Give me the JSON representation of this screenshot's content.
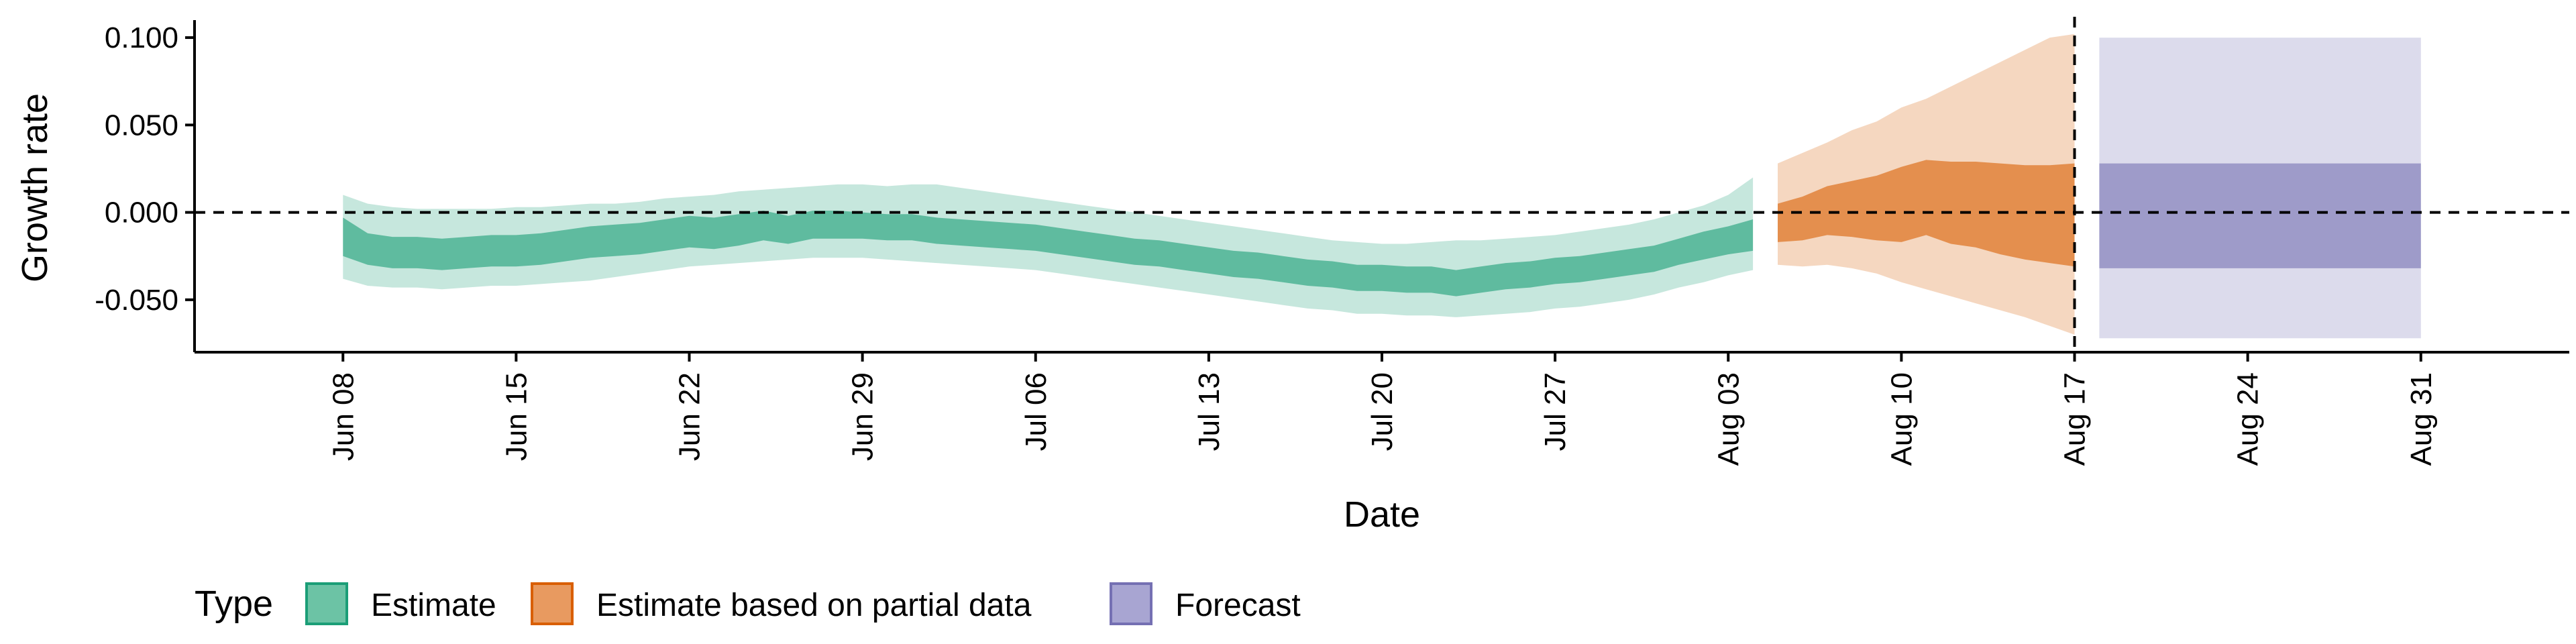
{
  "chart_data": {
    "type": "area",
    "title": "",
    "xlabel": "Date",
    "ylabel": "Growth rate",
    "x_range": [
      "2020-06-02",
      "2020-09-06"
    ],
    "ylim": [
      -0.08,
      0.11
    ],
    "grid": false,
    "reference_lines": [
      {
        "orientation": "horizontal",
        "y": 0.0,
        "style": "dashed"
      },
      {
        "orientation": "vertical",
        "x": "2020-08-17",
        "style": "dashed"
      }
    ],
    "x_ticks": [
      {
        "date": "2020-06-08",
        "label": "Jun 08"
      },
      {
        "date": "2020-06-15",
        "label": "Jun 15"
      },
      {
        "date": "2020-06-22",
        "label": "Jun 22"
      },
      {
        "date": "2020-06-29",
        "label": "Jun 29"
      },
      {
        "date": "2020-07-06",
        "label": "Jul 06"
      },
      {
        "date": "2020-07-13",
        "label": "Jul 13"
      },
      {
        "date": "2020-07-20",
        "label": "Jul 20"
      },
      {
        "date": "2020-07-27",
        "label": "Jul 27"
      },
      {
        "date": "2020-08-03",
        "label": "Aug 03"
      },
      {
        "date": "2020-08-10",
        "label": "Aug 10"
      },
      {
        "date": "2020-08-17",
        "label": "Aug 17"
      },
      {
        "date": "2020-08-24",
        "label": "Aug 24"
      },
      {
        "date": "2020-08-31",
        "label": "Aug 31"
      }
    ],
    "y_ticks": [
      {
        "value": 0.1,
        "label": "0.100"
      },
      {
        "value": 0.05,
        "label": "0.050"
      },
      {
        "value": 0.0,
        "label": "0.000"
      },
      {
        "value": -0.05,
        "label": "-0.050"
      }
    ],
    "legend": {
      "title": "Type",
      "position": "bottom-left",
      "entries": [
        {
          "label": "Estimate",
          "color": "#1b9e77",
          "fill": "#6cc3a5"
        },
        {
          "label": "Estimate based on partial data",
          "color": "#d95f02",
          "fill": "#e89a60"
        },
        {
          "label": "Forecast",
          "color": "#7570b3",
          "fill": "#a8a5d2"
        }
      ]
    },
    "series": [
      {
        "name": "Estimate",
        "color": "#1b9e77",
        "inner_opacity": 0.6,
        "outer_opacity": 0.25,
        "x": [
          "2020-06-08",
          "2020-06-09",
          "2020-06-10",
          "2020-06-11",
          "2020-06-12",
          "2020-06-13",
          "2020-06-14",
          "2020-06-15",
          "2020-06-16",
          "2020-06-17",
          "2020-06-18",
          "2020-06-19",
          "2020-06-20",
          "2020-06-21",
          "2020-06-22",
          "2020-06-23",
          "2020-06-24",
          "2020-06-25",
          "2020-06-26",
          "2020-06-27",
          "2020-06-28",
          "2020-06-29",
          "2020-06-30",
          "2020-07-01",
          "2020-07-02",
          "2020-07-03",
          "2020-07-04",
          "2020-07-05",
          "2020-07-06",
          "2020-07-07",
          "2020-07-08",
          "2020-07-09",
          "2020-07-10",
          "2020-07-11",
          "2020-07-12",
          "2020-07-13",
          "2020-07-14",
          "2020-07-15",
          "2020-07-16",
          "2020-07-17",
          "2020-07-18",
          "2020-07-19",
          "2020-07-20",
          "2020-07-21",
          "2020-07-22",
          "2020-07-23",
          "2020-07-24",
          "2020-07-25",
          "2020-07-26",
          "2020-07-27",
          "2020-07-28",
          "2020-07-29",
          "2020-07-30",
          "2020-07-31",
          "2020-08-01",
          "2020-08-02",
          "2020-08-03",
          "2020-08-04"
        ],
        "inner_lower": [
          -0.025,
          -0.03,
          -0.032,
          -0.032,
          -0.033,
          -0.032,
          -0.031,
          -0.031,
          -0.03,
          -0.028,
          -0.026,
          -0.025,
          -0.024,
          -0.022,
          -0.02,
          -0.021,
          -0.019,
          -0.016,
          -0.018,
          -0.015,
          -0.015,
          -0.015,
          -0.016,
          -0.016,
          -0.018,
          -0.019,
          -0.02,
          -0.021,
          -0.022,
          -0.024,
          -0.026,
          -0.028,
          -0.03,
          -0.031,
          -0.033,
          -0.035,
          -0.037,
          -0.038,
          -0.04,
          -0.042,
          -0.043,
          -0.045,
          -0.045,
          -0.046,
          -0.046,
          -0.048,
          -0.046,
          -0.044,
          -0.043,
          -0.041,
          -0.04,
          -0.038,
          -0.036,
          -0.034,
          -0.03,
          -0.027,
          -0.024,
          -0.022
        ],
        "inner_upper": [
          -0.003,
          -0.012,
          -0.014,
          -0.014,
          -0.015,
          -0.014,
          -0.013,
          -0.013,
          -0.012,
          -0.01,
          -0.008,
          -0.007,
          -0.006,
          -0.004,
          -0.002,
          -0.003,
          -0.001,
          0.001,
          -0.002,
          0.001,
          0.001,
          0.0,
          -0.001,
          -0.001,
          -0.003,
          -0.004,
          -0.005,
          -0.006,
          -0.007,
          -0.009,
          -0.011,
          -0.013,
          -0.015,
          -0.016,
          -0.018,
          -0.02,
          -0.022,
          -0.023,
          -0.025,
          -0.027,
          -0.028,
          -0.03,
          -0.03,
          -0.031,
          -0.031,
          -0.033,
          -0.031,
          -0.029,
          -0.028,
          -0.026,
          -0.025,
          -0.023,
          -0.021,
          -0.019,
          -0.015,
          -0.011,
          -0.008,
          -0.004
        ],
        "outer_lower": [
          -0.038,
          -0.042,
          -0.043,
          -0.043,
          -0.044,
          -0.043,
          -0.042,
          -0.042,
          -0.041,
          -0.04,
          -0.039,
          -0.037,
          -0.035,
          -0.033,
          -0.031,
          -0.03,
          -0.029,
          -0.028,
          -0.027,
          -0.026,
          -0.026,
          -0.026,
          -0.027,
          -0.028,
          -0.029,
          -0.03,
          -0.031,
          -0.032,
          -0.033,
          -0.035,
          -0.037,
          -0.039,
          -0.041,
          -0.043,
          -0.045,
          -0.047,
          -0.049,
          -0.051,
          -0.053,
          -0.055,
          -0.056,
          -0.058,
          -0.058,
          -0.059,
          -0.059,
          -0.06,
          -0.059,
          -0.058,
          -0.057,
          -0.055,
          -0.054,
          -0.052,
          -0.05,
          -0.047,
          -0.043,
          -0.04,
          -0.036,
          -0.033
        ],
        "outer_upper": [
          0.01,
          0.005,
          0.003,
          0.002,
          0.002,
          0.002,
          0.002,
          0.003,
          0.003,
          0.004,
          0.005,
          0.005,
          0.006,
          0.008,
          0.009,
          0.01,
          0.012,
          0.013,
          0.014,
          0.015,
          0.016,
          0.016,
          0.015,
          0.016,
          0.016,
          0.014,
          0.012,
          0.01,
          0.008,
          0.006,
          0.004,
          0.002,
          0.0,
          -0.002,
          -0.004,
          -0.006,
          -0.008,
          -0.01,
          -0.012,
          -0.014,
          -0.016,
          -0.017,
          -0.018,
          -0.018,
          -0.017,
          -0.016,
          -0.016,
          -0.015,
          -0.014,
          -0.013,
          -0.011,
          -0.009,
          -0.007,
          -0.004,
          0.0,
          0.004,
          0.01,
          0.02
        ]
      },
      {
        "name": "Estimate based on partial data",
        "color": "#d95f02",
        "inner_opacity": 0.6,
        "outer_opacity": 0.25,
        "x": [
          "2020-08-05",
          "2020-08-06",
          "2020-08-07",
          "2020-08-08",
          "2020-08-09",
          "2020-08-10",
          "2020-08-11",
          "2020-08-12",
          "2020-08-13",
          "2020-08-14",
          "2020-08-15",
          "2020-08-16",
          "2020-08-17"
        ],
        "inner_lower": [
          -0.017,
          -0.016,
          -0.013,
          -0.014,
          -0.016,
          -0.017,
          -0.013,
          -0.018,
          -0.02,
          -0.024,
          -0.027,
          -0.029,
          -0.031
        ],
        "inner_upper": [
          0.005,
          0.009,
          0.015,
          0.018,
          0.021,
          0.026,
          0.03,
          0.029,
          0.029,
          0.028,
          0.027,
          0.027,
          0.028
        ],
        "outer_lower": [
          -0.03,
          -0.031,
          -0.03,
          -0.032,
          -0.035,
          -0.04,
          -0.044,
          -0.048,
          -0.052,
          -0.056,
          -0.06,
          -0.065,
          -0.07
        ],
        "outer_upper": [
          0.028,
          0.034,
          0.04,
          0.047,
          0.052,
          0.06,
          0.065,
          0.072,
          0.079,
          0.086,
          0.093,
          0.1,
          0.102
        ]
      },
      {
        "name": "Forecast",
        "color": "#7570b3",
        "inner_opacity": 0.6,
        "outer_opacity": 0.25,
        "x": [
          "2020-08-18",
          "2020-08-31"
        ],
        "inner_lower": [
          -0.032,
          -0.032
        ],
        "inner_upper": [
          0.028,
          0.028
        ],
        "outer_lower": [
          -0.072,
          -0.072
        ],
        "outer_upper": [
          0.1,
          0.1
        ]
      }
    ]
  }
}
